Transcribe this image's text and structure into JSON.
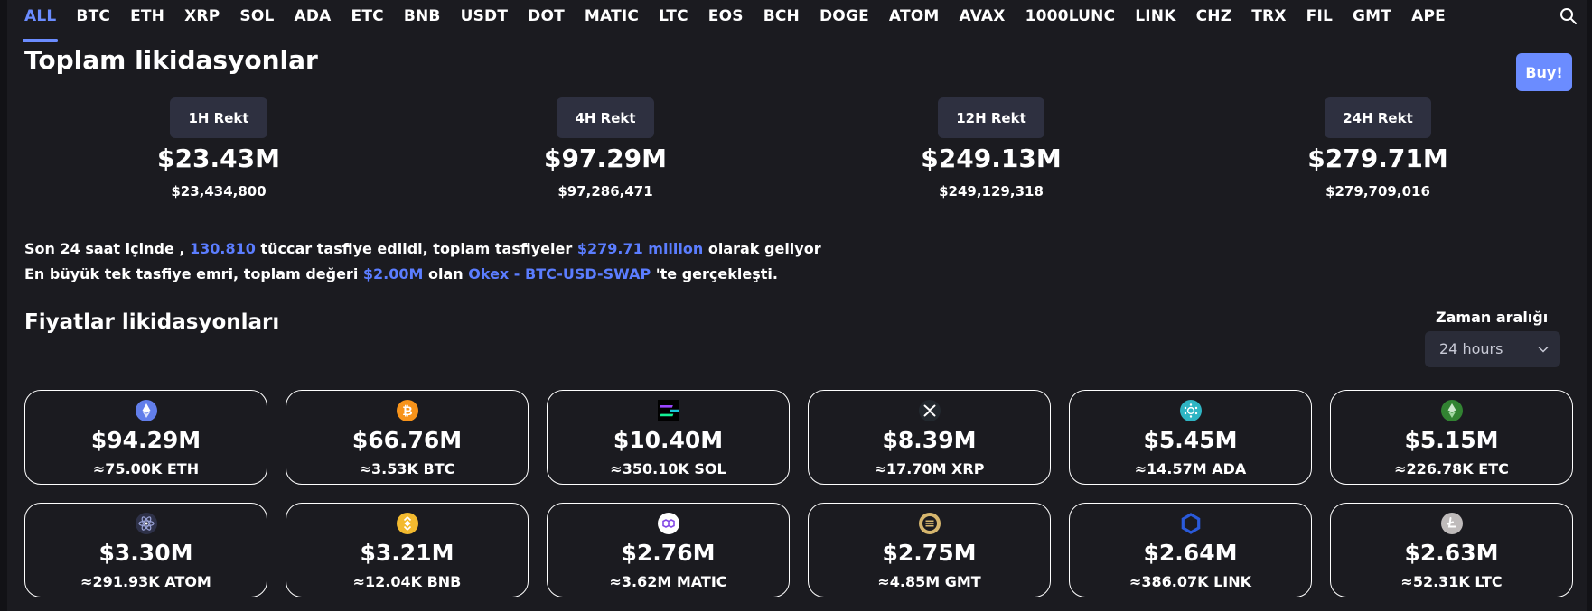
{
  "nav": {
    "tabs": [
      "ALL",
      "BTC",
      "ETH",
      "XRP",
      "SOL",
      "ADA",
      "ETC",
      "BNB",
      "USDT",
      "DOT",
      "MATIC",
      "LTC",
      "EOS",
      "BCH",
      "DOGE",
      "ATOM",
      "AVAX",
      "1000LUNC",
      "LINK",
      "CHZ",
      "TRX",
      "FIL",
      "GMT",
      "APE"
    ],
    "active_tab": "ALL",
    "search_icon": "search-icon"
  },
  "header": {
    "title": "Toplam likidasyonlar",
    "buy_label": "Buy!"
  },
  "rekt": [
    {
      "label": "1H Rekt",
      "big": "$23.43M",
      "small": "$23,434,800"
    },
    {
      "label": "4H Rekt",
      "big": "$97.29M",
      "small": "$97,286,471"
    },
    {
      "label": "12H Rekt",
      "big": "$249.13M",
      "small": "$249,129,318"
    },
    {
      "label": "24H Rekt",
      "big": "$279.71M",
      "small": "$279,709,016"
    }
  ],
  "summary": {
    "line1_a": "Son 24 saat içinde ,",
    "line1_traders": "130.810",
    "line1_b": "tüccar tasfiye edildi, toplam tasfiyeler",
    "line1_total": "$279.71 million",
    "line1_c": "olarak geliyor",
    "line2_a": "En büyük tek tasfiye emri, toplam değeri",
    "line2_value": "$2.00M",
    "line2_b": "olan",
    "line2_exchange": "Okex - BTC-USD-SWAP",
    "line2_c": "'te gerçekleşti."
  },
  "prices": {
    "title": "Fiyatlar likidasyonları",
    "range_label": "Zaman aralığı",
    "range_value": "24 hours"
  },
  "cards": [
    {
      "coin": "ETH",
      "icon": "eth-icon",
      "color": "#627eea",
      "usd": "$94.29M",
      "qty": "≈75.00K ETH"
    },
    {
      "coin": "BTC",
      "icon": "btc-icon",
      "color": "#f7931a",
      "usd": "$66.76M",
      "qty": "≈3.53K BTC"
    },
    {
      "coin": "SOL",
      "icon": "sol-icon",
      "color": "#14f195",
      "usd": "$10.40M",
      "qty": "≈350.10K SOL"
    },
    {
      "coin": "XRP",
      "icon": "xrp-icon",
      "color": "#23292f",
      "usd": "$8.39M",
      "qty": "≈17.70M XRP"
    },
    {
      "coin": "ADA",
      "icon": "ada-icon",
      "color": "#2fb5c4",
      "usd": "$5.45M",
      "qty": "≈14.57M ADA"
    },
    {
      "coin": "ETC",
      "icon": "etc-icon",
      "color": "#328332",
      "usd": "$5.15M",
      "qty": "≈226.78K ETC"
    },
    {
      "coin": "ATOM",
      "icon": "atom-icon",
      "color": "#2e3148",
      "usd": "$3.30M",
      "qty": "≈291.93K ATOM"
    },
    {
      "coin": "BNB",
      "icon": "bnb-icon",
      "color": "#f3ba2f",
      "usd": "$3.21M",
      "qty": "≈12.04K BNB"
    },
    {
      "coin": "MATIC",
      "icon": "matic-icon",
      "color": "#8247e5",
      "usd": "$2.76M",
      "qty": "≈3.62M MATIC"
    },
    {
      "coin": "GMT",
      "icon": "gmt-icon",
      "color": "#d6b66e",
      "usd": "$2.75M",
      "qty": "≈4.85M GMT"
    },
    {
      "coin": "LINK",
      "icon": "link-icon",
      "color": "#2a5ada",
      "usd": "$2.64M",
      "qty": "≈386.07K LINK"
    },
    {
      "coin": "LTC",
      "icon": "ltc-icon",
      "color": "#bfbbbb",
      "usd": "$2.63M",
      "qty": "≈52.31K LTC"
    }
  ]
}
